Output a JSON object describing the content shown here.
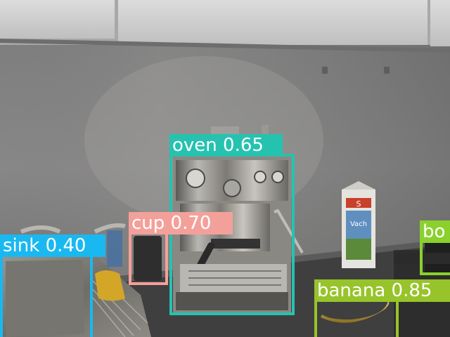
{
  "detections": [
    {
      "label": "oven",
      "score": "0.65",
      "color": "#26c2b0"
    },
    {
      "label": "cup",
      "score": "0.70",
      "color": "#f4a09a"
    },
    {
      "label": "sink",
      "score": "0.40",
      "color": "#19b8f0"
    },
    {
      "label": "banana",
      "score": "0.85",
      "color": "#97c42a"
    },
    {
      "label": "bo",
      "score": "",
      "color": "#8ad12c"
    }
  ],
  "carton_text": {
    "brand": "S",
    "product": "Vach"
  }
}
